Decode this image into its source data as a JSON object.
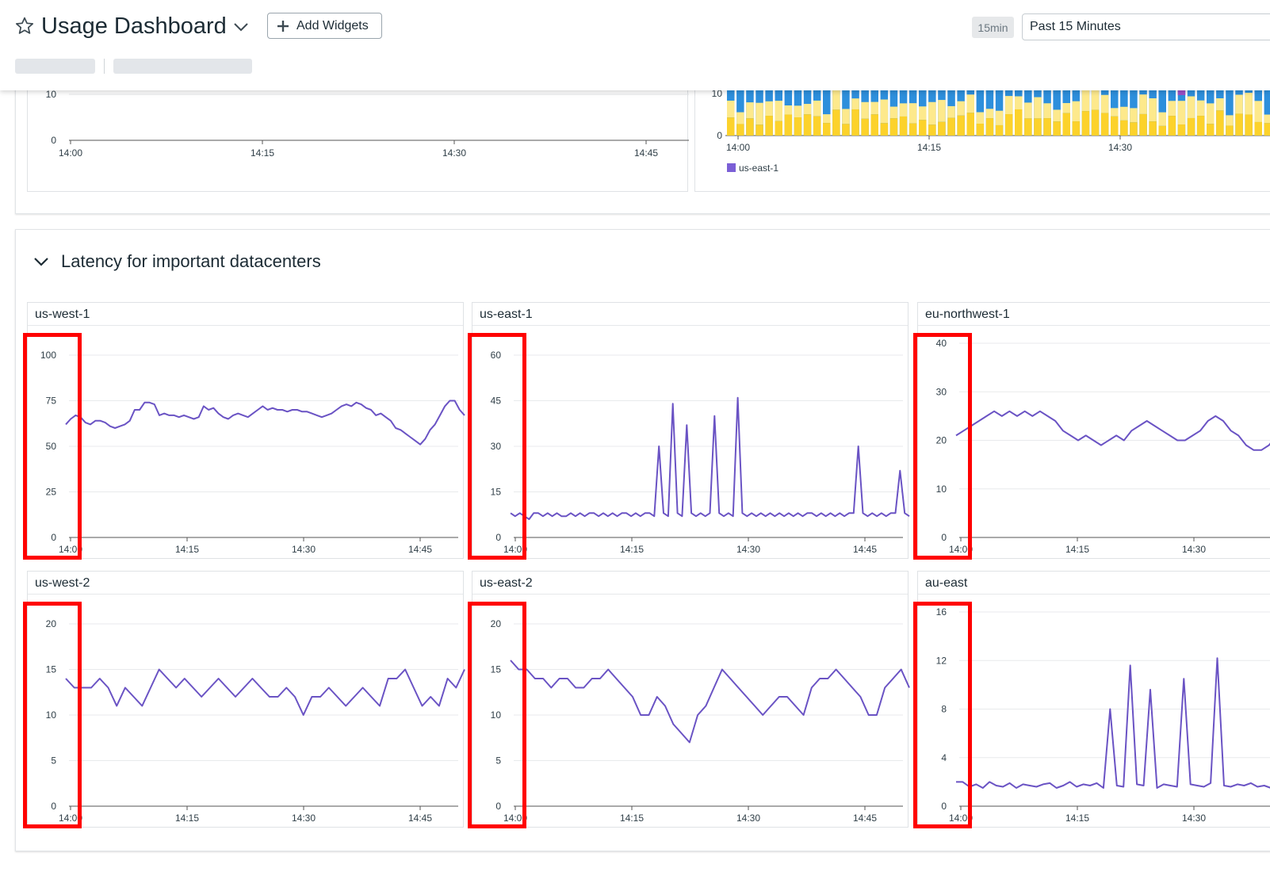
{
  "header": {
    "title": "Usage Dashboard",
    "add_widgets_label": "Add Widgets",
    "time_badge": "15min",
    "time_range_value": "Past 15 Minutes",
    "icons": [
      "star-icon",
      "chevron-down-icon",
      "plus-icon"
    ]
  },
  "top_charts": {
    "left": {
      "y_ticks": [
        "10",
        "0"
      ],
      "x_ticks": [
        "14:00",
        "14:15",
        "14:30",
        "14:45"
      ]
    },
    "right": {
      "y_ticks": [
        "10",
        "0"
      ],
      "x_ticks": [
        "14:00",
        "14:15",
        "14:30"
      ],
      "legend": [
        {
          "label": "us-east-1",
          "color": "#7b5fd6"
        }
      ],
      "colors": {
        "blue": "#2d8fdc",
        "yellow": "#fcd22b",
        "light_yellow": "#fde98c",
        "purple": "#9b4fc7"
      }
    }
  },
  "latency_group": {
    "title": "Latency for important datacenters",
    "line_color": "#6a53c4",
    "highlight_color": "#ff0000"
  },
  "chart_data": [
    {
      "type": "line",
      "title": "us-west-1",
      "x_ticks": [
        "14:00",
        "14:15",
        "14:30",
        "14:45"
      ],
      "y_ticks": [
        "100",
        "75",
        "50",
        "25",
        "0"
      ],
      "ylim": [
        0,
        100
      ],
      "grid": true,
      "series": [
        {
          "values": [
            62,
            65,
            67,
            66,
            63,
            62,
            64,
            64,
            63,
            61,
            60,
            61,
            62,
            64,
            70,
            70,
            74,
            74,
            73,
            67,
            68,
            67,
            67,
            66,
            67,
            66,
            65,
            66,
            72,
            70,
            71,
            68,
            66,
            65,
            67,
            68,
            67,
            66,
            68,
            70,
            72,
            70,
            71,
            70,
            70,
            69,
            70,
            70,
            69,
            69,
            68,
            67,
            66,
            67,
            68,
            70,
            72,
            73,
            72,
            74,
            73,
            71,
            70,
            67,
            68,
            66,
            64,
            60,
            59,
            57,
            55,
            53,
            51,
            54,
            59,
            62,
            67,
            72,
            75,
            75,
            70,
            67
          ]
        }
      ]
    },
    {
      "type": "line",
      "title": "us-east-1",
      "x_ticks": [
        "14:00",
        "14:15",
        "14:30",
        "14:45"
      ],
      "y_ticks": [
        "60",
        "45",
        "30",
        "15",
        "0"
      ],
      "ylim": [
        0,
        60
      ],
      "grid": true,
      "series": [
        {
          "values": [
            8,
            7,
            8,
            7,
            6,
            8,
            8,
            7,
            8,
            7,
            8,
            7,
            7,
            8,
            7,
            8,
            7,
            8,
            8,
            7,
            8,
            7,
            8,
            7,
            8,
            8,
            7,
            8,
            7,
            8,
            8,
            7,
            30,
            8,
            7,
            44,
            8,
            7,
            37,
            8,
            7,
            8,
            7,
            8,
            40,
            8,
            7,
            8,
            7,
            46,
            8,
            7,
            8,
            7,
            8,
            7,
            8,
            7,
            8,
            7,
            8,
            7,
            8,
            7,
            8,
            8,
            7,
            8,
            7,
            8,
            7,
            8,
            7,
            8,
            8,
            30,
            8,
            7,
            8,
            7,
            8,
            7,
            8,
            8,
            22,
            8,
            7
          ]
        }
      ]
    },
    {
      "type": "line",
      "title": "eu-northwest-1",
      "x_ticks": [
        "14:00",
        "14:15",
        "14:30"
      ],
      "y_ticks": [
        "40",
        "30",
        "20",
        "10",
        "0"
      ],
      "ylim": [
        0,
        40
      ],
      "grid": true,
      "series": [
        {
          "values": [
            21,
            22,
            23,
            24,
            25,
            26,
            25,
            26,
            25,
            26,
            25,
            26,
            25,
            24,
            22,
            21,
            20,
            21,
            20,
            19,
            20,
            21,
            20,
            22,
            23,
            24,
            23,
            22,
            21,
            20,
            20,
            21,
            22,
            24,
            25,
            24,
            22,
            21,
            19,
            18,
            18,
            19,
            21,
            22
          ]
        }
      ]
    },
    {
      "type": "line",
      "title": "us-west-2",
      "x_ticks": [
        "14:00",
        "14:15",
        "14:30",
        "14:45"
      ],
      "y_ticks": [
        "20",
        "15",
        "10",
        "5",
        "0"
      ],
      "ylim": [
        0,
        20
      ],
      "grid": true,
      "series": [
        {
          "values": [
            14,
            13,
            13,
            13,
            14,
            13,
            11,
            13,
            12,
            11,
            13,
            15,
            14,
            13,
            14,
            13,
            12,
            13,
            14,
            13,
            12,
            13,
            14,
            13,
            12,
            12,
            13,
            12,
            10,
            12,
            12,
            13,
            12,
            11,
            12,
            13,
            12,
            11,
            14,
            14,
            15,
            13,
            11,
            12,
            11,
            14,
            13,
            15
          ]
        }
      ]
    },
    {
      "type": "line",
      "title": "us-east-2",
      "x_ticks": [
        "14:00",
        "14:15",
        "14:30",
        "14:45"
      ],
      "y_ticks": [
        "20",
        "15",
        "10",
        "5",
        "0"
      ],
      "ylim": [
        0,
        20
      ],
      "grid": true,
      "series": [
        {
          "values": [
            16,
            15,
            15,
            14,
            14,
            13,
            14,
            14,
            13,
            13,
            14,
            14,
            15,
            14,
            13,
            12,
            10,
            10,
            12,
            11,
            9,
            8,
            7,
            10,
            11,
            13,
            15,
            14,
            13,
            12,
            11,
            10,
            11,
            12,
            12,
            11,
            10,
            13,
            14,
            14,
            15,
            14,
            13,
            12,
            10,
            10,
            13,
            14,
            15,
            13
          ]
        }
      ]
    },
    {
      "type": "line",
      "title": "au-east",
      "x_ticks": [
        "14:00",
        "14:15",
        "14:30"
      ],
      "y_ticks": [
        "16",
        "12",
        "8",
        "4",
        "0"
      ],
      "ylim": [
        0,
        16
      ],
      "grid": true,
      "series": [
        {
          "values": [
            2,
            2,
            1.6,
            1.8,
            1.5,
            2,
            1.7,
            1.6,
            1.9,
            1.5,
            1.8,
            1.7,
            1.6,
            1.8,
            1.9,
            1.5,
            1.7,
            2,
            1.6,
            1.8,
            1.7,
            1.9,
            1.5,
            8,
            1.7,
            1.6,
            11.6,
            1.8,
            1.7,
            9.6,
            1.5,
            1.8,
            1.7,
            1.6,
            10.5,
            1.8,
            1.7,
            1.6,
            1.9,
            12.2,
            1.7,
            1.6,
            1.8,
            1.7,
            1.9,
            1.6,
            1.7,
            1.5,
            1.8,
            1.7
          ]
        }
      ]
    }
  ]
}
